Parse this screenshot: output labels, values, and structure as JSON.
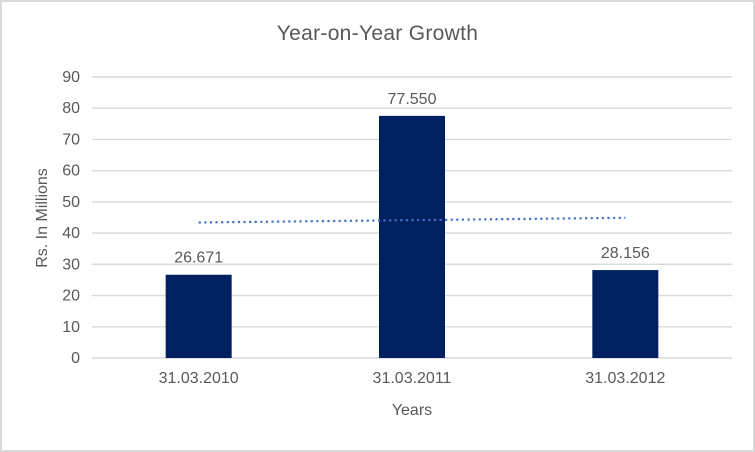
{
  "chart_data": {
    "type": "bar",
    "title": "Year-on-Year Growth",
    "categories": [
      "31.03.2010",
      "31.03.2011",
      "31.03.2012"
    ],
    "values": [
      26.671,
      77.55,
      28.156
    ],
    "value_labels": [
      "26.671",
      "77.550",
      "28.156"
    ],
    "xlabel": "Years",
    "ylabel": "Rs. In Millions",
    "ylim": [
      0,
      90
    ],
    "yticks": [
      0,
      10,
      20,
      30,
      40,
      50,
      60,
      70,
      80,
      90
    ],
    "grid": true,
    "legend": "none",
    "trendline": {
      "type": "linear",
      "style": "dotted",
      "start_value": 43.4,
      "end_value": 44.9
    },
    "colors": {
      "bar": "#002060",
      "trendline": "#4472C4",
      "text": "#595959",
      "gridline": "#D9D9D9",
      "axis_line": "#D9D9D9",
      "background": "#FFFFFF",
      "border": "#D9D9D9"
    }
  }
}
